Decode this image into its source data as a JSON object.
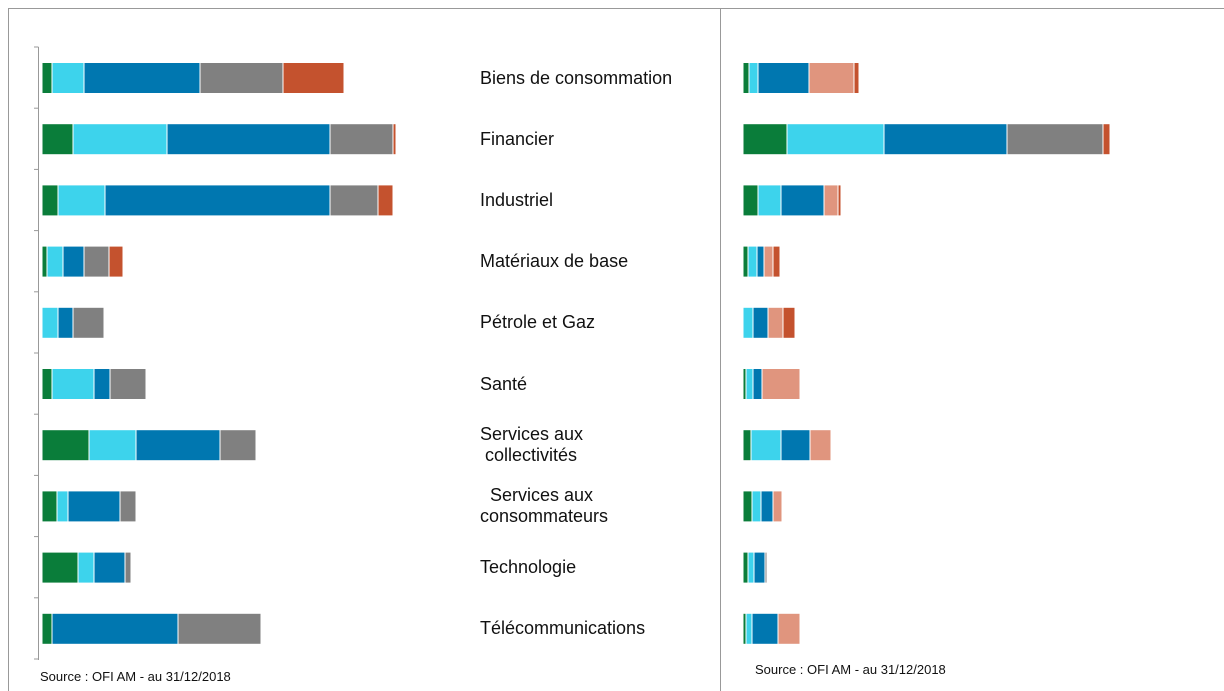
{
  "chart_data": [
    {
      "type": "bar",
      "orientation": "horizontal",
      "stacked": true,
      "categories": [
        "Biens de consommation",
        "Financier",
        "Industriel",
        "Matériaux de base",
        "Pétrole et Gaz",
        "Santé",
        "Services aux\n collectivités",
        "  Services aux\nconsommateurs",
        "Technologie",
        "Télécommunications"
      ],
      "xlim": [
        0,
        360
      ],
      "series": [
        {
          "color": "#0a7d3a",
          "values": [
            10,
            31,
            16,
            5,
            0,
            10,
            47,
            15,
            36,
            10
          ]
        },
        {
          "color": "#3dd3ec",
          "values": [
            32,
            94,
            47,
            16,
            16,
            42,
            47,
            11,
            16,
            0
          ]
        },
        {
          "color": "#0077b0",
          "values": [
            116,
            163,
            225,
            21,
            15,
            16,
            84,
            52,
            31,
            126
          ]
        },
        {
          "color": "#808080",
          "values": [
            83,
            63,
            48,
            25,
            31,
            36,
            36,
            16,
            6,
            83
          ]
        },
        {
          "color": "#c4522e",
          "values": [
            61,
            3,
            15,
            14,
            0,
            0,
            0,
            0,
            0,
            0
          ]
        }
      ],
      "source": "Source : OFI AM - au 31/12/2018"
    },
    {
      "type": "bar",
      "orientation": "horizontal",
      "stacked": true,
      "xlim": [
        0,
        370
      ],
      "series": [
        {
          "color": "#0a7d3a",
          "values": [
            6,
            44,
            15,
            5,
            0,
            3,
            8,
            9,
            5,
            3
          ]
        },
        {
          "color": "#3dd3ec",
          "values": [
            9,
            97,
            23,
            9,
            10,
            7,
            30,
            9,
            6,
            6
          ]
        },
        {
          "color": "#0077b0",
          "values": [
            51,
            123,
            43,
            7,
            15,
            9,
            29,
            12,
            11,
            26
          ]
        },
        {
          "color": "#808080",
          "values": [
            0,
            96,
            0,
            0,
            0,
            0,
            0,
            0,
            2,
            0
          ]
        },
        {
          "color": "#e0957e",
          "values": [
            45,
            0,
            14,
            9,
            15,
            38,
            21,
            9,
            0,
            22
          ]
        },
        {
          "color": "#c4522e",
          "values": [
            5,
            7,
            3,
            7,
            12,
            0,
            0,
            0,
            0,
            0
          ]
        }
      ],
      "source": "Source : OFI AM - au 31/12/2018"
    }
  ]
}
